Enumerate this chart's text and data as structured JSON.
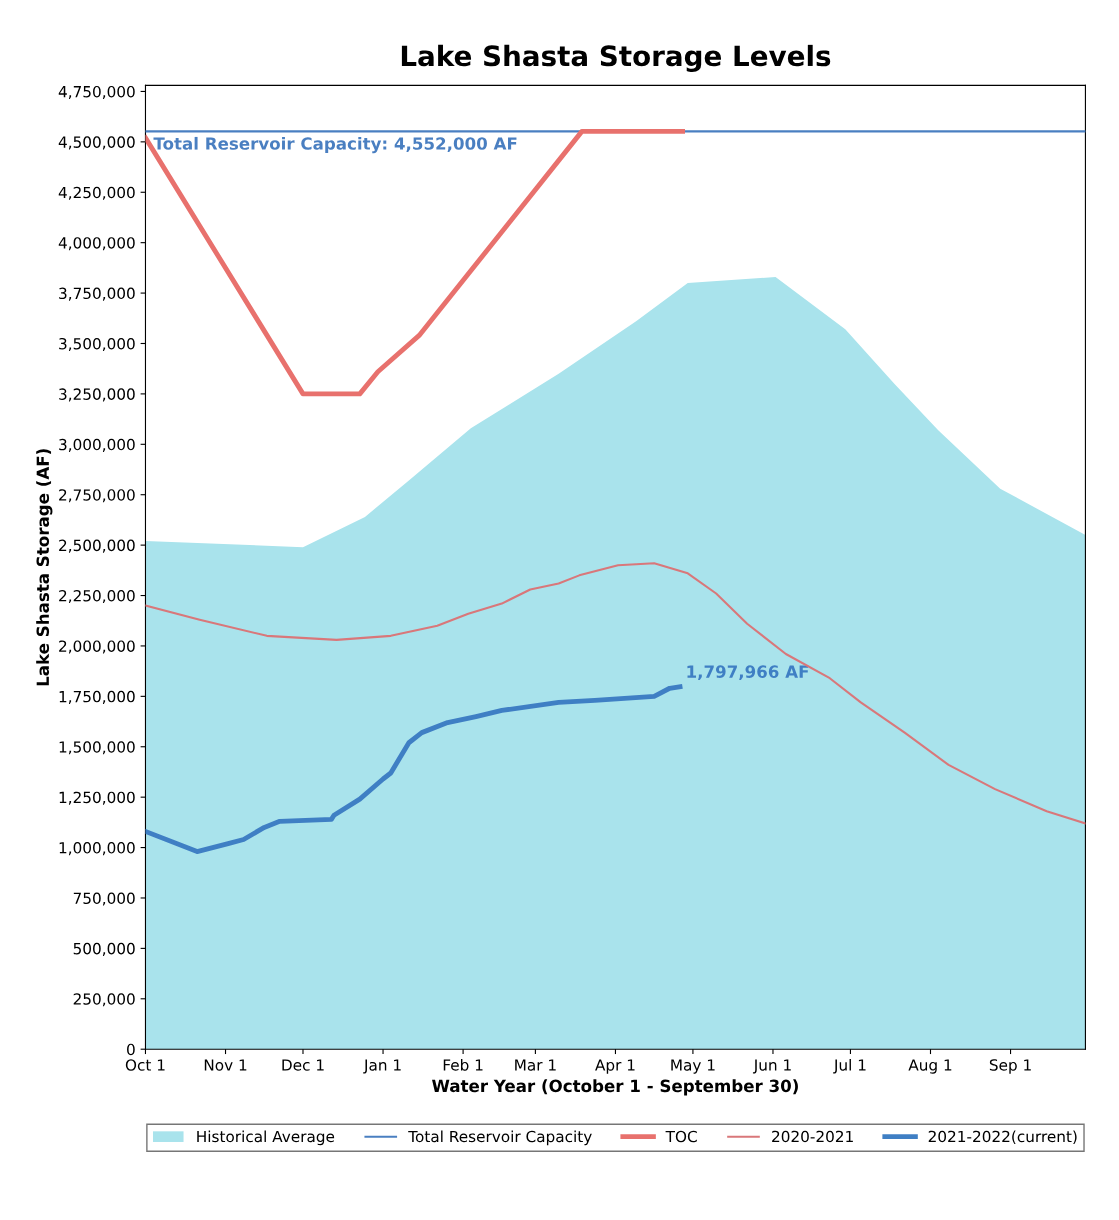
{
  "chart_data": {
    "type": "line",
    "title": "Lake Shasta Storage Levels",
    "xlabel": "Water Year (October 1 - September 30)",
    "ylabel": "Lake Shasta Storage (AF)",
    "xlim": [
      "2021-10-01",
      "2022-09-30"
    ],
    "xticks": [
      {
        "value": "2021-10-01",
        "label": "Oct 1"
      },
      {
        "value": "2021-11-01",
        "label": "Nov 1"
      },
      {
        "value": "2021-12-01",
        "label": "Dec 1"
      },
      {
        "value": "2022-01-01",
        "label": "Jan 1"
      },
      {
        "value": "2022-02-01",
        "label": "Feb 1"
      },
      {
        "value": "2022-03-01",
        "label": "Mar 1"
      },
      {
        "value": "2022-04-01",
        "label": "Apr 1"
      },
      {
        "value": "2022-05-01",
        "label": "May 1"
      },
      {
        "value": "2022-06-01",
        "label": "Jun 1"
      },
      {
        "value": "2022-07-01",
        "label": "Jul 1"
      },
      {
        "value": "2022-08-01",
        "label": "Aug 1"
      },
      {
        "value": "2022-09-01",
        "label": "Sep 1"
      }
    ],
    "ylim": [
      0,
      4780000
    ],
    "yticks": [
      {
        "value": 0,
        "label": "0"
      },
      {
        "value": 250000,
        "label": "250,000"
      },
      {
        "value": 500000,
        "label": "500,000"
      },
      {
        "value": 750000,
        "label": "750,000"
      },
      {
        "value": 1000000,
        "label": "1,000,000"
      },
      {
        "value": 1250000,
        "label": "1,250,000"
      },
      {
        "value": 1500000,
        "label": "1,500,000"
      },
      {
        "value": 1750000,
        "label": "1,750,000"
      },
      {
        "value": 2000000,
        "label": "2,000,000"
      },
      {
        "value": 2250000,
        "label": "2,250,000"
      },
      {
        "value": 2500000,
        "label": "2,500,000"
      },
      {
        "value": 2750000,
        "label": "2,750,000"
      },
      {
        "value": 3000000,
        "label": "3,000,000"
      },
      {
        "value": 3250000,
        "label": "3,250,000"
      },
      {
        "value": 3500000,
        "label": "3,500,000"
      },
      {
        "value": 3750000,
        "label": "3,750,000"
      },
      {
        "value": 4000000,
        "label": "4,000,000"
      },
      {
        "value": 4250000,
        "label": "4,250,000"
      },
      {
        "value": 4500000,
        "label": "4,500,000"
      },
      {
        "value": 4750000,
        "label": "4,750,000"
      }
    ],
    "grid": false,
    "legend": "bottom",
    "marker": "none",
    "line_style": "solid",
    "series": [
      {
        "name": "Historical Average",
        "type": "area",
        "color": "#a9e3ec",
        "x": [
          "2021-10-01",
          "2021-12-01",
          "2021-12-25",
          "2022-01-11",
          "2022-02-04",
          "2022-03-10",
          "2022-04-09",
          "2022-04-29",
          "2022-06-02",
          "2022-06-29",
          "2022-07-18",
          "2022-08-04",
          "2022-08-28",
          "2022-09-30"
        ],
        "values": [
          2520000,
          2490000,
          2640000,
          2820000,
          3080000,
          3350000,
          3610000,
          3800000,
          3830000,
          3570000,
          3300000,
          3070000,
          2780000,
          2550000
        ]
      },
      {
        "name": "Total Reservoir Capacity",
        "type": "line",
        "color": "#4a7fc1",
        "x": [
          "2021-10-01",
          "2022-09-30"
        ],
        "values": [
          4552000,
          4552000
        ]
      },
      {
        "name": "TOC",
        "type": "line",
        "color": "#e8716d",
        "x": [
          "2021-10-01",
          "2021-12-01",
          "2021-12-23",
          "2021-12-30",
          "2022-01-15",
          "2022-01-20",
          "2022-03-19",
          "2022-04-27"
        ],
        "values": [
          4520000,
          3250000,
          3250000,
          3360000,
          3540000,
          3620000,
          4552000,
          4552000
        ]
      },
      {
        "name": "2020-2021",
        "type": "line",
        "color": "#d9777a",
        "x": [
          "2021-10-01",
          "2021-10-22",
          "2021-11-17",
          "2021-12-14",
          "2022-01-04",
          "2022-01-22",
          "2022-02-03",
          "2022-02-16",
          "2022-02-27",
          "2022-03-10",
          "2022-03-18",
          "2022-04-02",
          "2022-04-16",
          "2022-04-29",
          "2022-05-10",
          "2022-05-22",
          "2022-06-06",
          "2022-06-23",
          "2022-07-05",
          "2022-07-22",
          "2022-08-08",
          "2022-08-26",
          "2022-09-15",
          "2022-09-30"
        ],
        "values": [
          2200000,
          2130000,
          2050000,
          2030000,
          2050000,
          2100000,
          2160000,
          2210000,
          2280000,
          2310000,
          2350000,
          2400000,
          2410000,
          2360000,
          2260000,
          2110000,
          1960000,
          1840000,
          1720000,
          1570000,
          1410000,
          1290000,
          1180000,
          1120000
        ]
      },
      {
        "name": "2021-2022(current)",
        "type": "line",
        "color": "#3f7fc4",
        "x": [
          "2021-10-01",
          "2021-10-21",
          "2021-11-02",
          "2021-11-08",
          "2021-11-16",
          "2021-11-22",
          "2021-12-12",
          "2021-12-13",
          "2021-12-23",
          "2022-01-01",
          "2022-01-04",
          "2022-01-11",
          "2022-01-16",
          "2022-01-26",
          "2022-02-06",
          "2022-02-16",
          "2022-03-10",
          "2022-03-24",
          "2022-04-16",
          "2022-04-22",
          "2022-04-26"
        ],
        "values": [
          1080000,
          980000,
          1020000,
          1040000,
          1100000,
          1130000,
          1140000,
          1160000,
          1240000,
          1340000,
          1370000,
          1520000,
          1570000,
          1620000,
          1650000,
          1680000,
          1720000,
          1730000,
          1750000,
          1790000,
          1797966
        ]
      }
    ],
    "annotations": [
      {
        "text": "Total Reservoir Capacity: 4,552,000 AF",
        "x": "2021-10-03",
        "y": 4552000
      },
      {
        "text": "1,797,966 AF",
        "x": "2022-04-26",
        "y": 1797966
      }
    ]
  }
}
